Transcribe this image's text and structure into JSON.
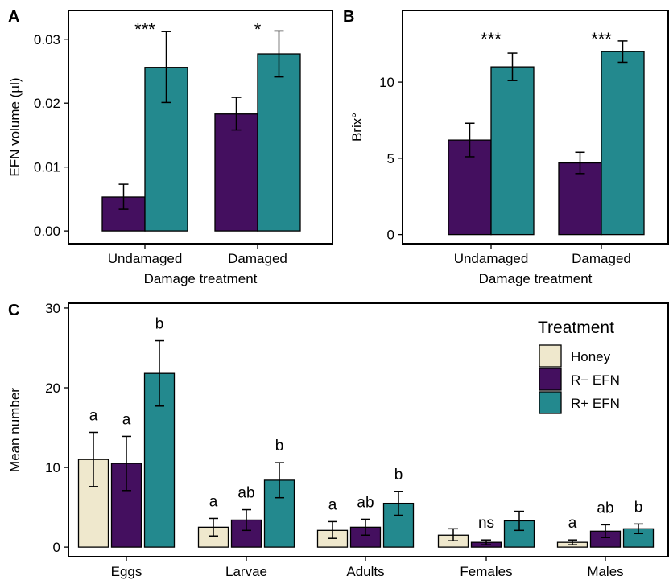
{
  "chart_data": [
    {
      "panel_label": "A",
      "type": "bar",
      "xlabel": "Damage treatment",
      "ylabel": "EFN volume (µl)",
      "categories": [
        "Undamaged",
        "Damaged"
      ],
      "ylim": [
        -0.002,
        0.0345
      ],
      "yticks": [
        0,
        0.01,
        0.02,
        0.03
      ],
      "ytick_labels": [
        "0.00",
        "0.01",
        "0.02",
        "0.03"
      ],
      "grid": false,
      "series": [
        {
          "color": "#440f5f",
          "values": [
            0.0053,
            0.0183
          ],
          "err_low": [
            0.0034,
            0.0158
          ],
          "err_high": [
            0.0073,
            0.0209
          ]
        },
        {
          "color": "#23898e",
          "values": [
            0.0256,
            0.0277
          ],
          "err_low": [
            0.0201,
            0.0241
          ],
          "err_high": [
            0.0312,
            0.0313
          ]
        }
      ],
      "annotations": [
        "***",
        "*"
      ]
    },
    {
      "panel_label": "B",
      "type": "bar",
      "xlabel": "Damage treatment",
      "ylabel": "Brix°",
      "categories": [
        "Undamaged",
        "Damaged"
      ],
      "ylim": [
        -0.6,
        14.7
      ],
      "yticks": [
        0,
        5,
        10
      ],
      "ytick_labels": [
        "0",
        "5",
        "10"
      ],
      "grid": false,
      "series": [
        {
          "color": "#440f5f",
          "values": [
            6.2,
            4.7
          ],
          "err_low": [
            5.1,
            4.0
          ],
          "err_high": [
            7.3,
            5.4
          ]
        },
        {
          "color": "#23898e",
          "values": [
            11.0,
            12.0
          ],
          "err_low": [
            10.1,
            11.3
          ],
          "err_high": [
            11.9,
            12.7
          ]
        }
      ],
      "annotations": [
        "***",
        "***"
      ]
    },
    {
      "panel_label": "C",
      "type": "bar",
      "xlabel": "",
      "ylabel": "Mean number",
      "categories": [
        "Eggs",
        "Larvae",
        "Adults",
        "Females",
        "Males"
      ],
      "ylim": [
        -1.2,
        30.6
      ],
      "yticks": [
        0,
        10,
        20,
        30
      ],
      "ytick_labels": [
        "0",
        "10",
        "20",
        "30"
      ],
      "grid": false,
      "legend": {
        "title": "Treatment",
        "position": "top-right"
      },
      "series": [
        {
          "name": "Honey",
          "color": "#efe8cd",
          "values": [
            11.0,
            2.5,
            2.1,
            1.5,
            0.6
          ],
          "err_low": [
            7.6,
            1.4,
            1.1,
            0.8,
            0.3
          ],
          "err_high": [
            14.4,
            3.6,
            3.2,
            2.3,
            0.9
          ]
        },
        {
          "name": "R− EFN",
          "color": "#440f5f",
          "values": [
            10.5,
            3.4,
            2.5,
            0.6,
            2.0
          ],
          "err_low": [
            7.1,
            2.1,
            1.5,
            0.3,
            1.2
          ],
          "err_high": [
            13.9,
            4.7,
            3.5,
            0.9,
            2.8
          ]
        },
        {
          "name": "R+ EFN",
          "color": "#23898e",
          "values": [
            21.8,
            8.4,
            5.5,
            3.3,
            2.3
          ],
          "err_low": [
            17.7,
            6.2,
            4.0,
            2.1,
            1.7
          ],
          "err_high": [
            25.9,
            10.6,
            7.0,
            4.5,
            2.9
          ]
        }
      ],
      "letters": [
        [
          "a",
          "a",
          "b"
        ],
        [
          "a",
          "ab",
          "b"
        ],
        [
          "a",
          "ab",
          "b"
        ],
        [
          "",
          "ns",
          ""
        ],
        [
          "a",
          "ab",
          "b"
        ]
      ]
    }
  ]
}
